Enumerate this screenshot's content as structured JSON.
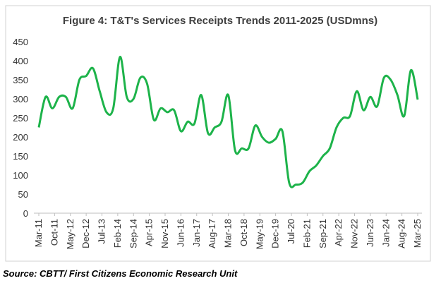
{
  "chart_data": {
    "type": "line",
    "title": "Figure 4: T&T's Services Receipts Trends 2011-2025 (USDmns)",
    "source": "Source: CBTT/ First Citizens Economic Research Unit",
    "x": [
      0,
      3,
      6,
      9,
      12,
      15,
      18,
      21,
      24,
      27,
      30,
      33,
      36,
      39,
      42,
      45,
      48,
      51,
      54,
      57,
      60,
      63,
      66,
      69,
      72,
      75,
      78,
      81,
      84,
      87,
      90,
      93,
      96,
      99,
      102,
      105,
      108,
      111,
      114,
      117,
      120,
      123,
      126,
      129,
      132,
      135,
      138,
      141,
      144,
      147,
      150,
      153,
      156,
      159,
      162,
      165,
      168
    ],
    "series": [
      {
        "name": "Services Receipts",
        "color": "#1db34a",
        "values": [
          225,
          305,
          275,
          305,
          305,
          275,
          350,
          360,
          380,
          320,
          265,
          275,
          410,
          305,
          300,
          355,
          340,
          245,
          275,
          265,
          270,
          215,
          240,
          235,
          310,
          210,
          225,
          240,
          310,
          165,
          170,
          170,
          230,
          200,
          185,
          195,
          215,
          80,
          75,
          80,
          110,
          125,
          150,
          170,
          225,
          250,
          255,
          320,
          270,
          305,
          280,
          355,
          350,
          310,
          255,
          375,
          298
        ]
      }
    ],
    "xlim": [
      0,
      168
    ],
    "xticks": [
      {
        "value": 0,
        "label": "Mar-11"
      },
      {
        "value": 7,
        "label": "Oct-11"
      },
      {
        "value": 14,
        "label": "May-12"
      },
      {
        "value": 21,
        "label": "Dec-12"
      },
      {
        "value": 28,
        "label": "Jul-13"
      },
      {
        "value": 35,
        "label": "Feb-14"
      },
      {
        "value": 42,
        "label": "Sep-14"
      },
      {
        "value": 49,
        "label": "Apr-15"
      },
      {
        "value": 56,
        "label": "Nov-15"
      },
      {
        "value": 63,
        "label": "Jun-16"
      },
      {
        "value": 70,
        "label": "Jan-17"
      },
      {
        "value": 77,
        "label": "Aug-17"
      },
      {
        "value": 84,
        "label": "Mar-18"
      },
      {
        "value": 91,
        "label": "Oct-18"
      },
      {
        "value": 98,
        "label": "May-19"
      },
      {
        "value": 105,
        "label": "Dec-19"
      },
      {
        "value": 112,
        "label": "Jul-20"
      },
      {
        "value": 119,
        "label": "Feb-21"
      },
      {
        "value": 126,
        "label": "Sep-21"
      },
      {
        "value": 133,
        "label": "Apr-22"
      },
      {
        "value": 140,
        "label": "Nov-22"
      },
      {
        "value": 147,
        "label": "Jun-23"
      },
      {
        "value": 154,
        "label": "Jan-24"
      },
      {
        "value": 161,
        "label": "Aug-24"
      },
      {
        "value": 168,
        "label": "Mar-25"
      }
    ],
    "ylim": [
      0,
      450
    ],
    "yticks": [
      0,
      50,
      100,
      150,
      200,
      250,
      300,
      350,
      400,
      450
    ],
    "grid": false
  }
}
